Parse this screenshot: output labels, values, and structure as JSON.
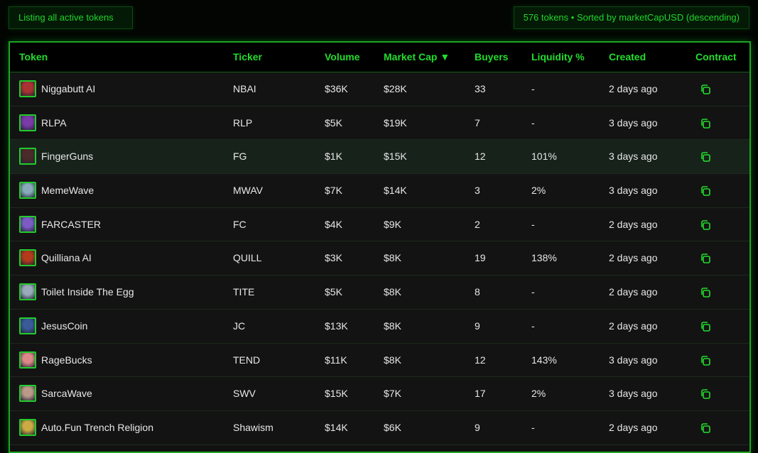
{
  "header": {
    "listing_label": "Listing all active tokens",
    "summary": "576 tokens • Sorted by marketCapUSD (descending)"
  },
  "columns": [
    "Token",
    "Ticker",
    "Volume",
    "Market Cap ▼",
    "Buyers",
    "Liquidity %",
    "Created",
    "Contract"
  ],
  "sorted_column": "Market Cap",
  "accent": "#22dd2c",
  "rows": [
    {
      "name": "Niggabutt AI",
      "ticker": "NBAI",
      "volume": "$36K",
      "mcap": "$28K",
      "buyers": "33",
      "liq": "-",
      "created": "2 days ago",
      "c": "#a33"
    },
    {
      "name": "RLPA",
      "ticker": "RLP",
      "volume": "$5K",
      "mcap": "$19K",
      "buyers": "7",
      "liq": "-",
      "created": "3 days ago",
      "c": "#7a3aa8"
    },
    {
      "name": "FingerGuns",
      "ticker": "FG",
      "volume": "$1K",
      "mcap": "$15K",
      "buyers": "12",
      "liq": "101%",
      "created": "3 days ago",
      "c": "#4a2a2a"
    },
    {
      "name": "MemeWave",
      "ticker": "MWAV",
      "volume": "$7K",
      "mcap": "$14K",
      "buyers": "3",
      "liq": "2%",
      "created": "3 days ago",
      "c": "#8ab"
    },
    {
      "name": "FARCASTER",
      "ticker": "FC",
      "volume": "$4K",
      "mcap": "$9K",
      "buyers": "2",
      "liq": "-",
      "created": "2 days ago",
      "c": "#7c5cc4"
    },
    {
      "name": "Quilliana AI",
      "ticker": "QUILL",
      "volume": "$3K",
      "mcap": "$8K",
      "buyers": "19",
      "liq": "138%",
      "created": "2 days ago",
      "c": "#b33a1a"
    },
    {
      "name": "Toilet Inside The Egg",
      "ticker": "TITE",
      "volume": "$5K",
      "mcap": "$8K",
      "buyers": "8",
      "liq": "-",
      "created": "2 days ago",
      "c": "#9ab"
    },
    {
      "name": "JesusCoin",
      "ticker": "JC",
      "volume": "$13K",
      "mcap": "$8K",
      "buyers": "9",
      "liq": "-",
      "created": "2 days ago",
      "c": "#3a5a9a"
    },
    {
      "name": "RageBucks",
      "ticker": "TEND",
      "volume": "$11K",
      "mcap": "$8K",
      "buyers": "12",
      "liq": "143%",
      "created": "3 days ago",
      "c": "#d88"
    },
    {
      "name": "SarcaWave",
      "ticker": "SWV",
      "volume": "$15K",
      "mcap": "$7K",
      "buyers": "17",
      "liq": "2%",
      "created": "3 days ago",
      "c": "#b98"
    },
    {
      "name": "Auto.Fun Trench Religion",
      "ticker": "Shawism",
      "volume": "$14K",
      "mcap": "$6K",
      "buyers": "9",
      "liq": "-",
      "created": "2 days ago",
      "c": "#ca4"
    }
  ]
}
